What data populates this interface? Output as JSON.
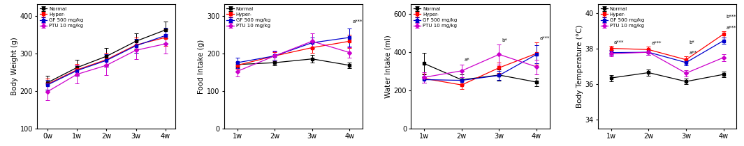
{
  "chart_data": [
    {
      "type": "line",
      "y_label": "Body Weight (g)",
      "categories": [
        "0w",
        "1w",
        "2w",
        "3w",
        "4w"
      ],
      "ylim": [
        100,
        430
      ],
      "yticks": [
        100,
        200,
        300,
        400
      ],
      "legend": "upper left",
      "series": [
        {
          "name": "Normal",
          "color": "#000000",
          "marker": "square",
          "values": [
            222,
            262,
            292,
            332,
            362
          ],
          "errors": [
            18,
            20,
            22,
            20,
            22
          ]
        },
        {
          "name": "Hyper-",
          "color": "#ff0000",
          "marker": "square",
          "values": [
            218,
            256,
            283,
            322,
            342
          ],
          "errors": [
            14,
            16,
            18,
            20,
            22
          ]
        },
        {
          "name": "GF 500 mg/kg",
          "color": "#0000cd",
          "marker": "square",
          "values": [
            216,
            254,
            281,
            320,
            347
          ],
          "errors": [
            13,
            14,
            17,
            18,
            20
          ]
        },
        {
          "name": "PTU 10 mg/kg",
          "color": "#cc00cc",
          "marker": "diamond",
          "values": [
            198,
            244,
            268,
            308,
            325
          ],
          "errors": [
            22,
            24,
            26,
            24,
            26
          ]
        }
      ],
      "annotations": []
    },
    {
      "type": "line",
      "y_label": "Food Intake (g)",
      "categories": [
        "1w",
        "2w",
        "3w",
        "4w"
      ],
      "ylim": [
        0,
        330
      ],
      "yticks": [
        0,
        100,
        200,
        300
      ],
      "legend": "upper left",
      "series": [
        {
          "name": "Normal",
          "color": "#000000",
          "marker": "square",
          "values": [
            170,
            175,
            185,
            168
          ],
          "errors": [
            8,
            8,
            10,
            8
          ]
        },
        {
          "name": "Hyper-",
          "color": "#ff0000",
          "marker": "square",
          "values": [
            168,
            193,
            215,
            232
          ],
          "errors": [
            10,
            10,
            14,
            18
          ]
        },
        {
          "name": "GF 500 mg/kg",
          "color": "#0000cd",
          "marker": "square",
          "values": [
            175,
            193,
            228,
            242
          ],
          "errors": [
            14,
            11,
            14,
            24
          ]
        },
        {
          "name": "PTU 10 mg/kg",
          "color": "#cc00cc",
          "marker": "diamond",
          "values": [
            152,
            193,
            232,
            202
          ],
          "errors": [
            14,
            14,
            20,
            14
          ]
        }
      ],
      "annotations": [
        {
          "text": "a***",
          "category": "4w",
          "y": 278
        }
      ]
    },
    {
      "type": "line",
      "y_label": "Water Intake (ml)",
      "categories": [
        "1w",
        "2w",
        "3w",
        "4w"
      ],
      "ylim": [
        0,
        650
      ],
      "yticks": [
        0,
        200,
        400,
        600
      ],
      "legend": "upper left",
      "series": [
        {
          "name": "Normal",
          "color": "#000000",
          "marker": "square",
          "values": [
            340,
            255,
            280,
            243
          ],
          "errors": [
            55,
            28,
            28,
            22
          ]
        },
        {
          "name": "Hyper-",
          "color": "#ff0000",
          "marker": "square",
          "values": [
            262,
            228,
            318,
            393
          ],
          "errors": [
            24,
            22,
            28,
            58
          ]
        },
        {
          "name": "GF 500 mg/kg",
          "color": "#0000cd",
          "marker": "square",
          "values": [
            256,
            252,
            278,
            388
          ],
          "errors": [
            18,
            18,
            24,
            48
          ]
        },
        {
          "name": "PTU 10 mg/kg",
          "color": "#cc00cc",
          "marker": "diamond",
          "values": [
            268,
            302,
            388,
            323
          ],
          "errors": [
            28,
            34,
            52,
            38
          ]
        }
      ],
      "annotations": [
        {
          "text": "a*",
          "category": "2w",
          "y": 348
        },
        {
          "text": "b*",
          "category": "3w",
          "y": 452
        },
        {
          "text": "a***",
          "category": "4w",
          "y": 463
        }
      ]
    },
    {
      "type": "line",
      "y_label": "Body Temperature (°C)",
      "categories": [
        "1w",
        "2w",
        "3w",
        "4w"
      ],
      "ylim": [
        33.5,
        40.5
      ],
      "yticks": [
        34,
        36,
        38,
        40
      ],
      "legend": "upper left",
      "series": [
        {
          "name": "Normal",
          "color": "#000000",
          "marker": "square",
          "values": [
            36.35,
            36.65,
            36.15,
            36.55
          ],
          "errors": [
            0.18,
            0.16,
            0.16,
            0.16
          ]
        },
        {
          "name": "Hyper-",
          "color": "#ff0000",
          "marker": "square",
          "values": [
            38.02,
            37.95,
            37.38,
            38.82
          ],
          "errors": [
            0.15,
            0.18,
            0.18,
            0.18
          ]
        },
        {
          "name": "GF 500 mg/kg",
          "color": "#0000cd",
          "marker": "square",
          "values": [
            37.78,
            37.8,
            37.22,
            38.45
          ],
          "errors": [
            0.15,
            0.15,
            0.16,
            0.18
          ]
        },
        {
          "name": "PTU 10 mg/kg",
          "color": "#cc00cc",
          "marker": "diamond",
          "values": [
            37.72,
            37.8,
            36.62,
            37.5
          ],
          "errors": [
            0.16,
            0.16,
            0.18,
            0.2
          ]
        }
      ],
      "annotations": [
        {
          "text": "a***",
          "category": "1w",
          "y": 38.25
        },
        {
          "text": "a***",
          "category": "2w",
          "y": 38.21
        },
        {
          "text": "a**",
          "category": "3w",
          "y": 37.64
        },
        {
          "text": "b*",
          "category": "3w",
          "y": 37.86
        },
        {
          "text": "a***",
          "category": "4w",
          "y": 39.08
        },
        {
          "text": "b***",
          "category": "4w",
          "y": 39.3
        }
      ]
    }
  ]
}
